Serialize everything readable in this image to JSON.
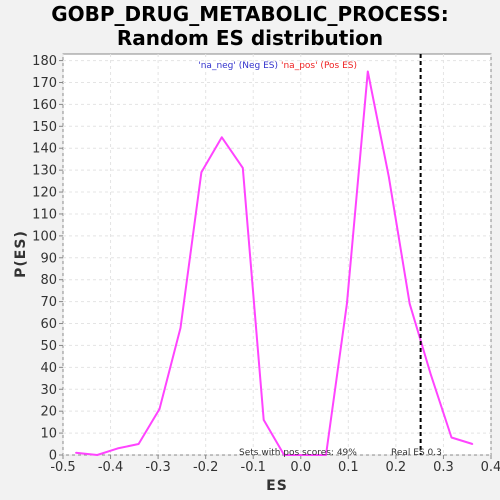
{
  "chart_data": {
    "type": "line",
    "title": [
      "GOBP_DRUG_METABOLIC_PROCESS:",
      "Random ES distribution"
    ],
    "xlabel": "ES",
    "ylabel": "P(ES)",
    "xlim": [
      -0.5,
      0.4
    ],
    "ylim": [
      0,
      183
    ],
    "xticks": [
      "-0.5",
      "-0.4",
      "-0.3",
      "-0.2",
      "-0.1",
      "0.0",
      "0.1",
      "0.2",
      "0.3",
      "0.4"
    ],
    "xtick_values": [
      -0.5,
      -0.4,
      -0.3,
      -0.2,
      -0.1,
      0.0,
      0.1,
      0.2,
      0.3,
      0.4
    ],
    "yticks": [
      0,
      10,
      20,
      30,
      40,
      50,
      60,
      70,
      80,
      90,
      100,
      110,
      120,
      130,
      140,
      150,
      160,
      170,
      180
    ],
    "grid": true,
    "series": [
      {
        "color": "#ff44ff",
        "x": [
          -0.473,
          -0.428,
          -0.385,
          -0.341,
          -0.297,
          -0.253,
          -0.209,
          -0.166,
          -0.122,
          -0.078,
          -0.035,
          0.009,
          0.053,
          0.097,
          0.141,
          0.185,
          0.229,
          0.273,
          0.317,
          0.361
        ],
        "y": [
          1,
          0,
          3,
          5,
          21,
          58,
          129,
          145,
          131,
          16,
          0,
          0,
          0,
          69,
          175,
          127,
          69,
          37,
          8,
          5
        ]
      }
    ],
    "legend": {
      "neg": "'na_neg' (Neg ES)",
      "pos": "'na_pos' (Pos ES)",
      "neg_color": "#3333cc",
      "pos_color": "#ee2222",
      "placement": "top-center"
    },
    "real_es": {
      "value": 0.252,
      "label": "Real ES 0.3"
    },
    "pos_scores_text": "Sets with pos scores: 49%"
  }
}
